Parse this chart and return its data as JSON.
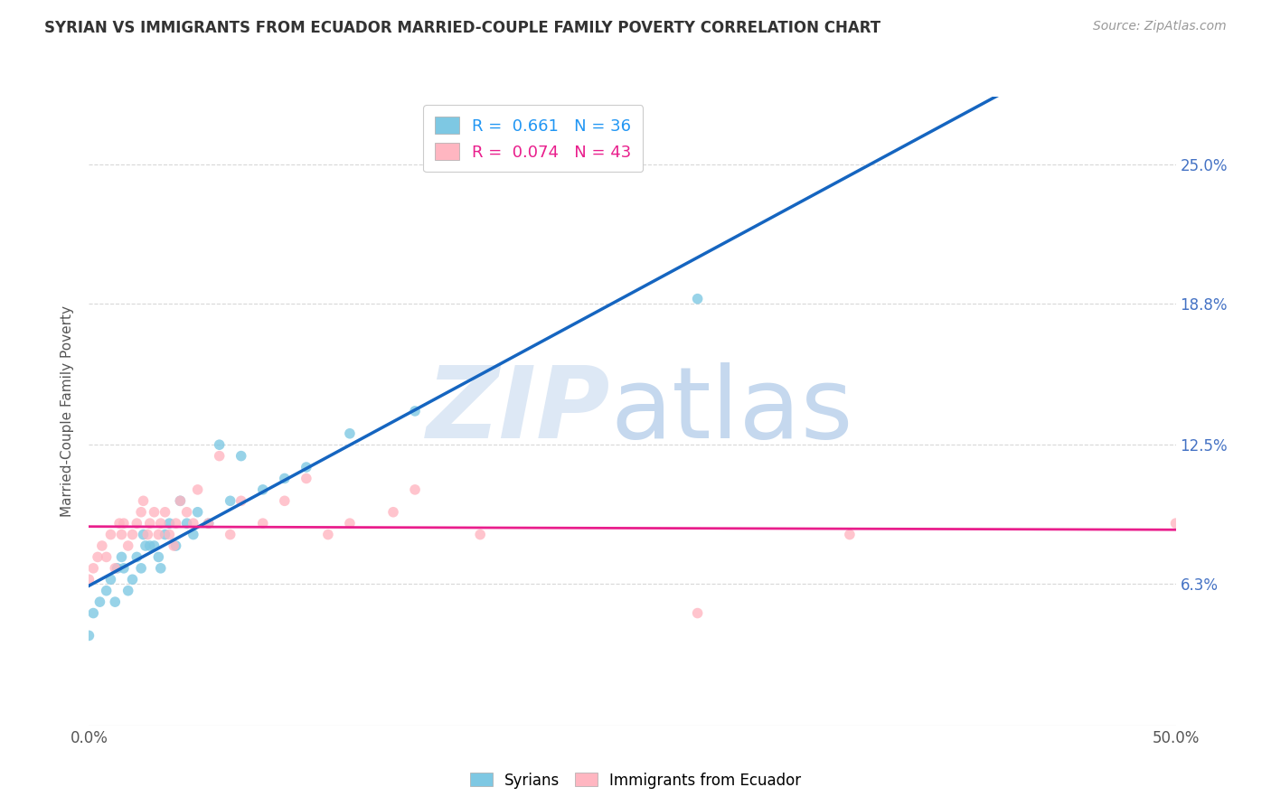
{
  "title": "SYRIAN VS IMMIGRANTS FROM ECUADOR MARRIED-COUPLE FAMILY POVERTY CORRELATION CHART",
  "source": "Source: ZipAtlas.com",
  "ylabel": "Married-Couple Family Poverty",
  "xlim": [
    0.0,
    0.5
  ],
  "ylim": [
    0.0,
    0.28
  ],
  "ytick_values": [
    0.063,
    0.125,
    0.188,
    0.25
  ],
  "right_ytick_labels": [
    "6.3%",
    "12.5%",
    "18.8%",
    "25.0%"
  ],
  "legend_r1": "R =  0.661   N = 36",
  "legend_r2": "R =  0.074   N = 43",
  "legend_color1": "#7ec8e3",
  "legend_color2": "#ffb6c1",
  "syrian_color": "#7ec8e3",
  "ecuador_color": "#ffb6c1",
  "syrian_line_color": "#1565C0",
  "ecuador_line_color": "#E91E8C",
  "syrian_scatter_x": [
    0.0,
    0.002,
    0.005,
    0.008,
    0.01,
    0.012,
    0.013,
    0.015,
    0.016,
    0.018,
    0.02,
    0.022,
    0.024,
    0.025,
    0.026,
    0.028,
    0.03,
    0.032,
    0.033,
    0.035,
    0.037,
    0.04,
    0.042,
    0.045,
    0.048,
    0.05,
    0.055,
    0.06,
    0.065,
    0.07,
    0.08,
    0.09,
    0.1,
    0.12,
    0.15,
    0.28
  ],
  "syrian_scatter_y": [
    0.04,
    0.05,
    0.055,
    0.06,
    0.065,
    0.055,
    0.07,
    0.075,
    0.07,
    0.06,
    0.065,
    0.075,
    0.07,
    0.085,
    0.08,
    0.08,
    0.08,
    0.075,
    0.07,
    0.085,
    0.09,
    0.08,
    0.1,
    0.09,
    0.085,
    0.095,
    0.09,
    0.125,
    0.1,
    0.12,
    0.105,
    0.11,
    0.115,
    0.13,
    0.14,
    0.19
  ],
  "ecuador_scatter_x": [
    0.0,
    0.002,
    0.004,
    0.006,
    0.008,
    0.01,
    0.012,
    0.014,
    0.015,
    0.016,
    0.018,
    0.02,
    0.022,
    0.024,
    0.025,
    0.027,
    0.028,
    0.03,
    0.032,
    0.033,
    0.035,
    0.037,
    0.039,
    0.04,
    0.042,
    0.045,
    0.048,
    0.05,
    0.055,
    0.06,
    0.065,
    0.07,
    0.08,
    0.09,
    0.1,
    0.11,
    0.12,
    0.14,
    0.15,
    0.18,
    0.28,
    0.35,
    0.5
  ],
  "ecuador_scatter_y": [
    0.065,
    0.07,
    0.075,
    0.08,
    0.075,
    0.085,
    0.07,
    0.09,
    0.085,
    0.09,
    0.08,
    0.085,
    0.09,
    0.095,
    0.1,
    0.085,
    0.09,
    0.095,
    0.085,
    0.09,
    0.095,
    0.085,
    0.08,
    0.09,
    0.1,
    0.095,
    0.09,
    0.105,
    0.09,
    0.12,
    0.085,
    0.1,
    0.09,
    0.1,
    0.11,
    0.085,
    0.09,
    0.095,
    0.105,
    0.085,
    0.05,
    0.085,
    0.09
  ],
  "background_color": "#ffffff",
  "grid_color": "#d8d8d8"
}
